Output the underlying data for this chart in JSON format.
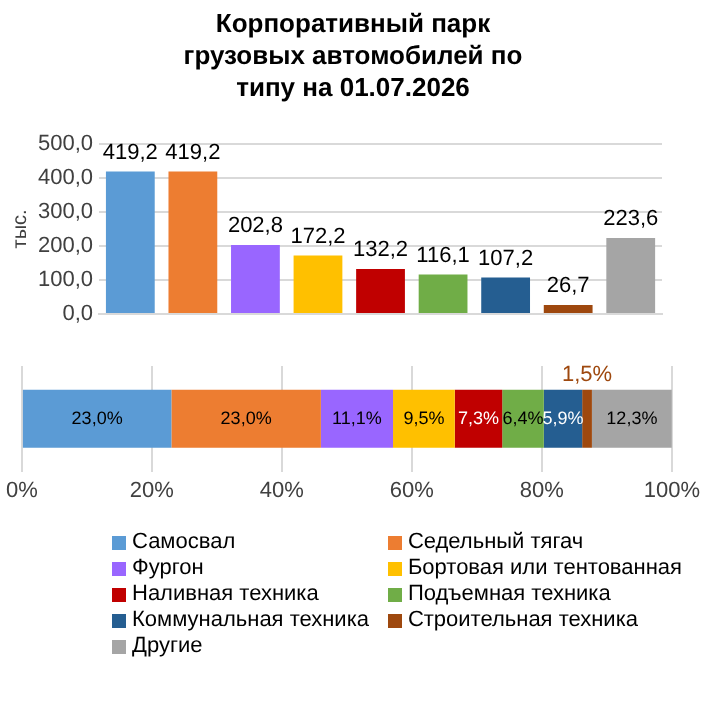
{
  "chart_data": [
    {
      "type": "bar",
      "title": "Корпоративный парк грузовых автомобилей по типу на 01.07.2026",
      "ylabel": "тыс.",
      "categories": [
        null,
        null,
        null,
        null,
        null,
        null,
        null,
        null,
        null
      ],
      "values": [
        419.2,
        419.2,
        202.8,
        172.2,
        132.2,
        116.1,
        107.2,
        26.7,
        223.6
      ],
      "value_labels": [
        "419,2",
        "419,2",
        "202,8",
        "172,2",
        "132,2",
        "116,1",
        "107,2",
        "26,7",
        "223,6"
      ],
      "colors": [
        "#5b9bd5",
        "#ed7d31",
        "#9966ff",
        "#ffc000",
        "#c00000",
        "#70ad47",
        "#255e91",
        "#9e480e",
        "#a5a5a5"
      ],
      "ylim": [
        0,
        500
      ],
      "yticks": [
        {
          "value": 0,
          "label": "0,0"
        },
        {
          "value": 100,
          "label": "100,0"
        },
        {
          "value": 200,
          "label": "200,0"
        },
        {
          "value": 300,
          "label": "300,0"
        },
        {
          "value": 400,
          "label": "400,0"
        },
        {
          "value": 500,
          "label": "500,0"
        }
      ],
      "grid": "y",
      "legend": false
    },
    {
      "type": "bar",
      "orientation": "horizontal",
      "stacked": true,
      "categories": [
        null
      ],
      "series": [
        {
          "name": "Самосвал",
          "color": "#5b9bd5",
          "values": [
            23.0
          ],
          "value_labels": [
            "23,0%"
          ]
        },
        {
          "name": "Седельный тягач",
          "color": "#ed7d31",
          "values": [
            23.0
          ],
          "value_labels": [
            "23,0%"
          ]
        },
        {
          "name": "Фургон",
          "color": "#9966ff",
          "values": [
            11.1
          ],
          "value_labels": [
            "11,1%"
          ]
        },
        {
          "name": "Бортовая или тентованная",
          "color": "#ffc000",
          "values": [
            9.5
          ],
          "value_labels": [
            "9,5%"
          ]
        },
        {
          "name": "Наливная техника",
          "color": "#c00000",
          "values": [
            7.3
          ],
          "value_labels": [
            "7,3%"
          ]
        },
        {
          "name": "Подъемная техника",
          "color": "#70ad47",
          "values": [
            6.4
          ],
          "value_labels": [
            "6,4%"
          ]
        },
        {
          "name": "Коммунальная техника",
          "color": "#255e91",
          "values": [
            5.9
          ],
          "value_labels": [
            "5,9%"
          ]
        },
        {
          "name": "Строительная техника",
          "color": "#9e480e",
          "values": [
            1.5
          ],
          "value_labels": [
            "1,5%"
          ]
        },
        {
          "name": "Другие",
          "color": "#a5a5a5",
          "values": [
            12.3
          ],
          "value_labels": [
            "12,3%"
          ]
        }
      ],
      "xlim": [
        0,
        100
      ],
      "xticks": [
        {
          "value": 0,
          "label": "0%"
        },
        {
          "value": 20,
          "label": "20%"
        },
        {
          "value": 40,
          "label": "40%"
        },
        {
          "value": 60,
          "label": "60%"
        },
        {
          "value": 80,
          "label": "80%"
        },
        {
          "value": 100,
          "label": "100%"
        }
      ],
      "grid": "x",
      "legend": "bottom"
    }
  ]
}
